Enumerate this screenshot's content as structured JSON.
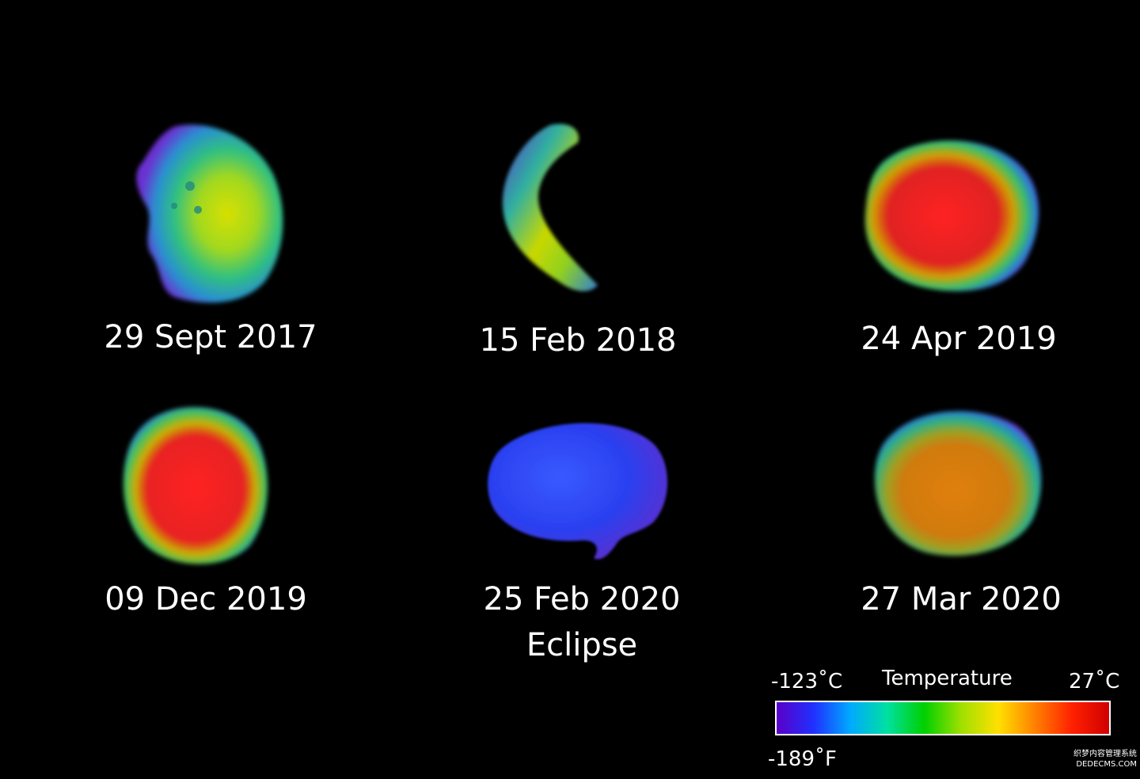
{
  "panels": [
    {
      "caption": "29 Sept 2017",
      "subcaption": "",
      "heat": "warm-yellow"
    },
    {
      "caption": "15 Feb 2018",
      "subcaption": "",
      "heat": "crescent-yellow"
    },
    {
      "caption": "24 Apr 2019",
      "subcaption": "",
      "heat": "hot-red"
    },
    {
      "caption": "09 Dec 2019",
      "subcaption": "",
      "heat": "hot-red"
    },
    {
      "caption": "25 Feb 2020",
      "subcaption": "Eclipse",
      "heat": "cold-blue"
    },
    {
      "caption": "27 Mar 2020",
      "subcaption": "",
      "heat": "warm-orange"
    }
  ],
  "legend": {
    "title": "Temperature",
    "min_c": "-123˚C",
    "max_c": "27˚C",
    "min_f": "-189˚F",
    "colors": [
      "#5a00c8",
      "#2030ff",
      "#00aaff",
      "#00e0a0",
      "#00d000",
      "#a0e000",
      "#ffe000",
      "#ff8000",
      "#ff2000",
      "#d00000"
    ]
  },
  "watermark": {
    "line1": "织梦内容管理系统",
    "line2": "DEDECMS.COM"
  }
}
